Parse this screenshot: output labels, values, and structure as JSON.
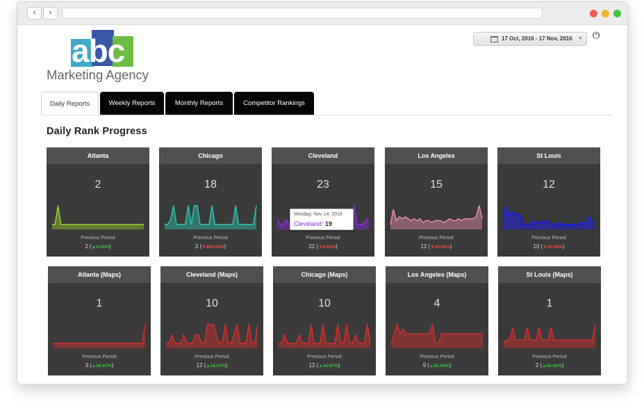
{
  "logo": {
    "letters": "abc",
    "subtitle": "Marketing Agency"
  },
  "date_range": "17 Oct, 2016 - 17 Nov, 2016",
  "tabs": [
    "Daily Reports",
    "Weekly Reports",
    "Monthly Reports",
    "Competitor Rankings"
  ],
  "active_tab": "Daily Reports",
  "section_title": "Daily Rank Progress",
  "prev_label": "Previous Period",
  "tooltip": {
    "date": "Monday, Nov 14, 2016",
    "city": "Cleveland:",
    "value": "19"
  },
  "cards": [
    {
      "title": "Atlanta",
      "value": "2",
      "prev": "2",
      "change": "0.00%",
      "dir": "up",
      "color": "#9acd32",
      "series": [
        2,
        2,
        40,
        2,
        2,
        2,
        2,
        2,
        2,
        2,
        2,
        2,
        2,
        2,
        2,
        2,
        2,
        2,
        2,
        2,
        2,
        2,
        2,
        2,
        2,
        2,
        2,
        2,
        2,
        2,
        2,
        2
      ]
    },
    {
      "title": "Chicago",
      "value": "18",
      "prev": "2",
      "change": "800.00%",
      "dir": "down",
      "color": "#2ec4b0",
      "series": [
        10,
        10,
        12,
        18,
        10,
        10,
        10,
        10,
        18,
        10,
        18,
        18,
        10,
        10,
        10,
        10,
        18,
        10,
        10,
        10,
        10,
        10,
        10,
        10,
        18,
        10,
        10,
        10,
        10,
        10,
        10,
        18
      ]
    },
    {
      "title": "Cleveland",
      "value": "23",
      "prev": "22",
      "change": "4.55%",
      "dir": "down",
      "color": "#8a2be2",
      "series": [
        19,
        18,
        18,
        19,
        18,
        18,
        18,
        19,
        18,
        18,
        18,
        18,
        18,
        18,
        18,
        18,
        19,
        18,
        18,
        19,
        18,
        18,
        18,
        18,
        18,
        18,
        22,
        18,
        18,
        18,
        19,
        19
      ]
    },
    {
      "title": "Los Angeles",
      "value": "15",
      "prev": "12",
      "change": "25.00%",
      "dir": "down",
      "color": "#e88fb0",
      "series": [
        12,
        20,
        14,
        16,
        15,
        16,
        15,
        14,
        15,
        14,
        15,
        13,
        14,
        14,
        13,
        14,
        14,
        14,
        13,
        14,
        15,
        14,
        14,
        15,
        14,
        15,
        15,
        15,
        15,
        16,
        22,
        15
      ]
    },
    {
      "title": "St Louis",
      "value": "12",
      "prev": "10",
      "change": "20.00%",
      "dir": "down",
      "color": "#1a1aff",
      "series": [
        12,
        22,
        16,
        18,
        16,
        17,
        15,
        10,
        10,
        10,
        12,
        11,
        11,
        12,
        12,
        12,
        11,
        10,
        10,
        11,
        10,
        10,
        10,
        10,
        10,
        10,
        11,
        11,
        10,
        15,
        12,
        12
      ]
    },
    {
      "title": "Atlanta (Maps)",
      "value": "1",
      "prev": "3",
      "change": "66.67%",
      "dir": "up",
      "color": "#d62d2d",
      "series": [
        2,
        2,
        2,
        2,
        2,
        2,
        2,
        2,
        2,
        2,
        2,
        2,
        2,
        2,
        2,
        2,
        2,
        2,
        2,
        2,
        2,
        2,
        2,
        2,
        2,
        2,
        2,
        2,
        2,
        2,
        2,
        10
      ]
    },
    {
      "title": "Cleveland (Maps)",
      "value": "10",
      "prev": "12",
      "change": "16.67%",
      "dir": "up",
      "color": "#d62d2d",
      "series": [
        0,
        0,
        10,
        0,
        0,
        0,
        10,
        0,
        0,
        0,
        10,
        10,
        0,
        0,
        22,
        22,
        22,
        10,
        0,
        0,
        22,
        0,
        0,
        10,
        22,
        0,
        0,
        0,
        22,
        0,
        0,
        22
      ]
    },
    {
      "title": "Chicago (Maps)",
      "value": "10",
      "prev": "12",
      "change": "16.67%",
      "dir": "up",
      "color": "#d62d2d",
      "series": [
        0,
        0,
        10,
        0,
        0,
        0,
        0,
        10,
        0,
        0,
        0,
        22,
        0,
        0,
        0,
        22,
        0,
        0,
        0,
        0,
        22,
        0,
        0,
        22,
        0,
        0,
        10,
        0,
        0,
        0,
        22,
        0
      ]
    },
    {
      "title": "Los Angeles (Maps)",
      "value": "4",
      "prev": "9",
      "change": "55.56%",
      "dir": "up",
      "color": "#d62d2d",
      "series": [
        8,
        10,
        12,
        10,
        11,
        10,
        10,
        10,
        10,
        10,
        10,
        10,
        10,
        10,
        12,
        8,
        8,
        10,
        10,
        10,
        10,
        10,
        10,
        10,
        10,
        10,
        10,
        10,
        10,
        10,
        10,
        10
      ]
    },
    {
      "title": "St Louis (Maps)",
      "value": "1",
      "prev": "2",
      "change": "50.00%",
      "dir": "up",
      "color": "#d62d2d",
      "series": [
        0,
        2,
        2,
        10,
        2,
        2,
        2,
        2,
        10,
        2,
        2,
        2,
        10,
        2,
        2,
        2,
        10,
        2,
        2,
        2,
        2,
        2,
        2,
        2,
        2,
        2,
        2,
        2,
        2,
        2,
        2,
        12
      ]
    }
  ]
}
